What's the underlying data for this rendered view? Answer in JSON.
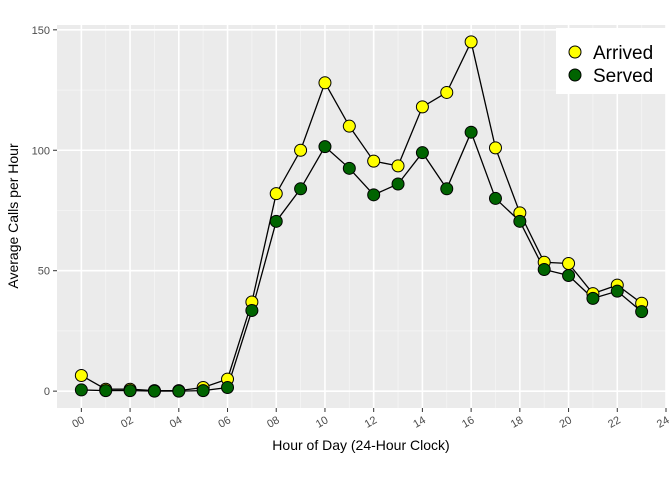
{
  "chart_data": {
    "type": "line",
    "title": "",
    "xlabel": "Hour of Day (24-Hour Clock)",
    "ylabel": "Average Calls per Hour",
    "xlim": [
      -1,
      24
    ],
    "ylim": [
      -7,
      152
    ],
    "x": [
      0,
      1,
      2,
      3,
      4,
      5,
      6,
      7,
      8,
      9,
      10,
      11,
      12,
      13,
      14,
      15,
      16,
      17,
      18,
      19,
      20,
      21,
      22,
      23
    ],
    "x_ticks": [
      0,
      2,
      4,
      6,
      8,
      10,
      12,
      14,
      16,
      18,
      20,
      22,
      24
    ],
    "x_tick_labels": [
      "00",
      "02",
      "04",
      "06",
      "08",
      "10",
      "12",
      "14",
      "16",
      "18",
      "20",
      "22",
      "24"
    ],
    "y_ticks": [
      0,
      50,
      100,
      150
    ],
    "y_tick_labels": [
      "0",
      "50",
      "100",
      "150"
    ],
    "grid": true,
    "legend_position": "top-right",
    "series": [
      {
        "name": "Arrived",
        "color": "#ffff00",
        "values": [
          6.5,
          0.8,
          0.8,
          0.2,
          0.2,
          1.5,
          5,
          37,
          82,
          100,
          128,
          110,
          95.5,
          93.5,
          118,
          124,
          145,
          101,
          74,
          53.5,
          53,
          40.5,
          44,
          36.5
        ]
      },
      {
        "name": "Served",
        "color": "#006400",
        "values": [
          0.5,
          0.2,
          0.2,
          0,
          0,
          0.2,
          1.5,
          33.5,
          70.5,
          84,
          101.5,
          92.5,
          81.5,
          86,
          99,
          84,
          107.5,
          80,
          70.5,
          50.5,
          48,
          38.5,
          41.5,
          33
        ]
      }
    ]
  }
}
